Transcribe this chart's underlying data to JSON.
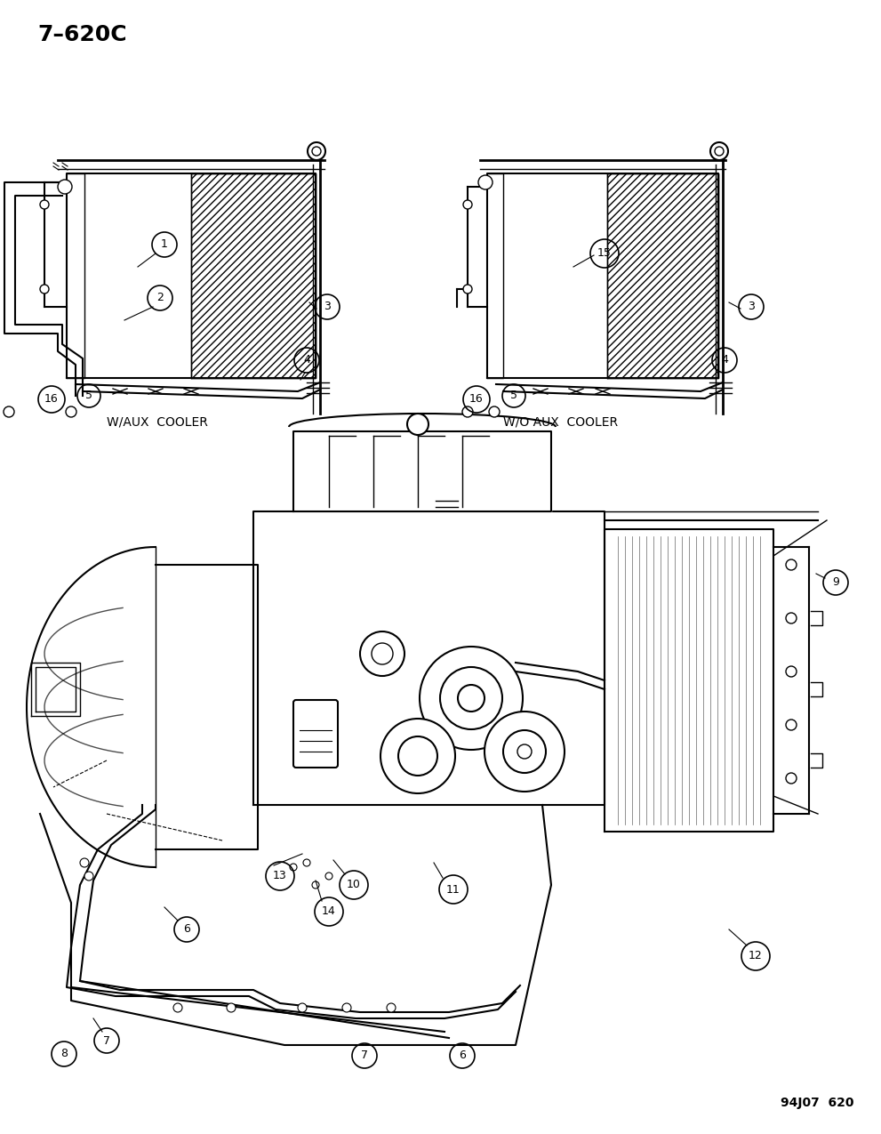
{
  "title_text": "7–620C",
  "catalog_number": "94J07  620",
  "background_color": "#ffffff",
  "line_color": "#000000",
  "label_left_top": "W/AUX  COOLER",
  "label_right_top": "W/O AUX  COOLER",
  "figsize": [
    9.91,
    12.75
  ],
  "dpi": 100,
  "title_fontsize": 18,
  "label_fontsize": 10,
  "catalog_fontsize": 10
}
